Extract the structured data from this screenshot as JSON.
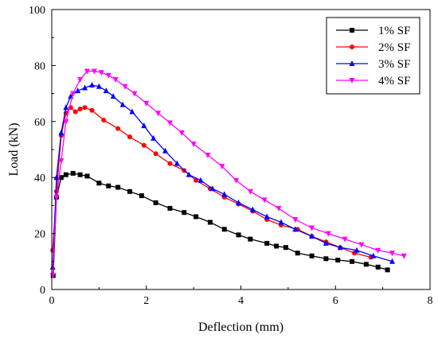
{
  "chart_data": {
    "type": "line",
    "title": "",
    "xlabel": "Deflection (mm)",
    "ylabel": "Load (kN)",
    "xlim": [
      0,
      8
    ],
    "ylim": [
      0,
      100
    ],
    "xticks": [
      0,
      2,
      4,
      6,
      8
    ],
    "yticks": [
      0,
      20,
      40,
      60,
      80,
      100
    ],
    "grid": false,
    "legend_position": "top-right",
    "series": [
      {
        "name": "1% SF",
        "color": "#000000",
        "marker": "square",
        "x": [
          0.03,
          0.1,
          0.2,
          0.3,
          0.45,
          0.6,
          0.75,
          1.0,
          1.2,
          1.4,
          1.65,
          1.9,
          2.2,
          2.5,
          2.8,
          3.05,
          3.35,
          3.65,
          3.95,
          4.2,
          4.55,
          4.75,
          4.95,
          5.2,
          5.5,
          5.8,
          6.05,
          6.35,
          6.65,
          6.9,
          7.1
        ],
        "y": [
          5,
          33,
          40,
          41,
          41.5,
          41,
          40.5,
          38,
          37,
          36.5,
          35,
          33.5,
          31,
          29,
          27.5,
          26,
          24,
          21.5,
          19.5,
          18,
          16.5,
          15.5,
          15,
          13,
          12,
          11,
          10.5,
          10,
          9,
          8,
          7
        ]
      },
      {
        "name": "2% SF",
        "color": "#ff0000",
        "marker": "circle",
        "x": [
          0.02,
          0.1,
          0.2,
          0.3,
          0.4,
          0.5,
          0.6,
          0.7,
          0.85,
          1.1,
          1.4,
          1.65,
          1.95,
          2.2,
          2.5,
          2.8,
          3.05,
          3.35,
          3.65,
          3.95,
          4.25,
          4.55,
          4.85,
          5.2,
          5.5,
          5.8,
          6.1,
          6.4,
          6.75
        ],
        "y": [
          14,
          35,
          55,
          63,
          65,
          63.5,
          64.5,
          65,
          64,
          60.5,
          57.5,
          54.5,
          51.5,
          48.5,
          45,
          42.5,
          39,
          36,
          33,
          30.5,
          28,
          25,
          23,
          21.5,
          19,
          17,
          15,
          13,
          11.5
        ]
      },
      {
        "name": "3% SF",
        "color": "#0000ff",
        "marker": "triangle",
        "x": [
          0.02,
          0.1,
          0.2,
          0.3,
          0.4,
          0.55,
          0.7,
          0.85,
          1.0,
          1.15,
          1.3,
          1.5,
          1.7,
          1.95,
          2.15,
          2.4,
          2.65,
          2.9,
          3.15,
          3.4,
          3.65,
          3.95,
          4.25,
          4.55,
          4.85,
          5.15,
          5.5,
          5.8,
          6.1,
          6.45,
          6.8,
          7.2
        ],
        "y": [
          8,
          40,
          56,
          65,
          69,
          71,
          72,
          73,
          72.5,
          71,
          69,
          66,
          63.5,
          58.5,
          54,
          49.5,
          45,
          41,
          39,
          36,
          34,
          31,
          28.5,
          26,
          24,
          21.5,
          19,
          16.5,
          15,
          14,
          12,
          10
        ]
      },
      {
        "name": "4% SF",
        "color": "#ff00ff",
        "marker": "triangle-down",
        "x": [
          0.02,
          0.1,
          0.2,
          0.3,
          0.45,
          0.6,
          0.75,
          0.9,
          1.05,
          1.2,
          1.35,
          1.55,
          1.75,
          2.0,
          2.25,
          2.5,
          2.75,
          3.0,
          3.3,
          3.6,
          3.9,
          4.2,
          4.5,
          4.8,
          5.15,
          5.5,
          5.85,
          6.2,
          6.55,
          6.9,
          7.2,
          7.45
        ],
        "y": [
          5,
          33,
          46,
          60,
          70,
          75,
          78,
          78,
          77.5,
          76.5,
          75,
          72.5,
          70,
          66.5,
          63,
          59.5,
          56,
          52,
          48,
          44,
          39,
          35,
          32,
          29,
          25,
          22,
          20,
          18,
          16,
          14,
          13,
          12
        ]
      }
    ]
  }
}
